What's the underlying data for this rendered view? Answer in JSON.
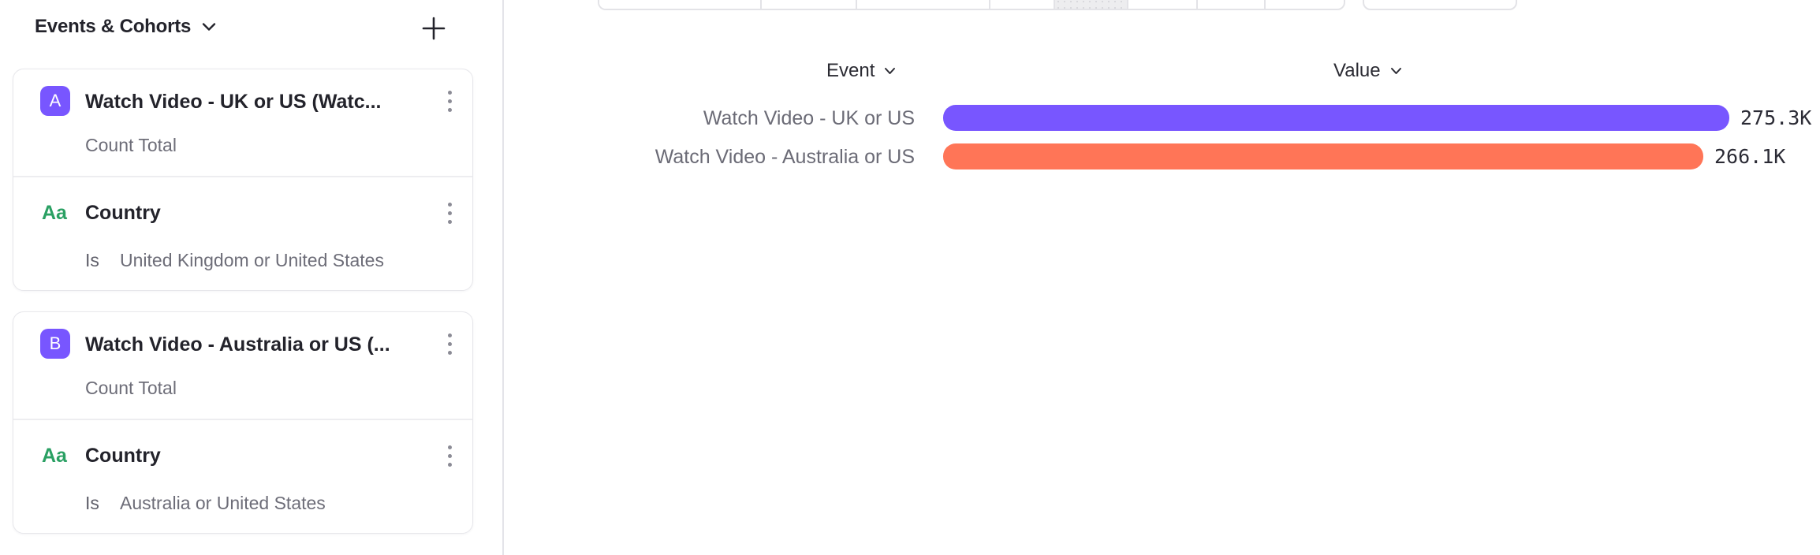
{
  "sidebar": {
    "title": "Events & Cohorts",
    "cards": [
      {
        "badge": "A",
        "event_name": "Watch Video - UK or US (Watc...",
        "metric": "Count Total",
        "property_type": "Aa",
        "property_name": "Country",
        "operator": "Is",
        "filter_value": "United Kingdom or United States"
      },
      {
        "badge": "B",
        "event_name": "Watch Video - Australia or US (...",
        "metric": "Count Total",
        "property_type": "Aa",
        "property_name": "Country",
        "operator": "Is",
        "filter_value": "Australia or United States"
      }
    ]
  },
  "chart_data": {
    "type": "bar",
    "orientation": "horizontal",
    "columns": [
      "Event",
      "Value"
    ],
    "categories": [
      "Watch Video - UK or US",
      "Watch Video - Australia or US"
    ],
    "values": [
      275300,
      266100
    ],
    "value_labels": [
      "275.3K",
      "266.1K"
    ],
    "series_colors": [
      "#7856ff",
      "#ff7557"
    ],
    "xlim": [
      0,
      275300
    ],
    "grid": false,
    "legend": false
  },
  "colors": {
    "badge": "#7856ff",
    "series_a": "#7856ff",
    "series_b": "#ff7557",
    "property_type_green": "#2aa063"
  }
}
